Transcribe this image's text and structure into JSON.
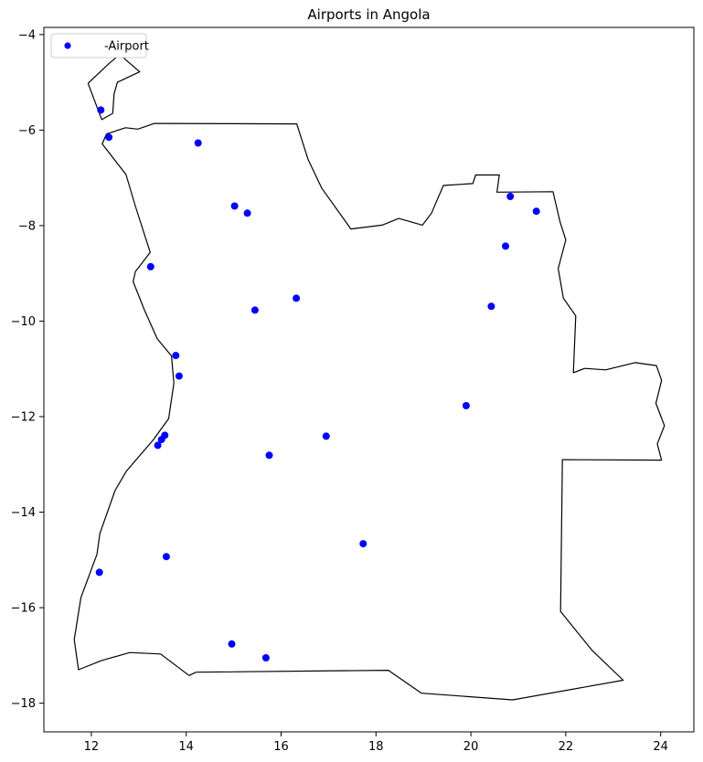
{
  "chart_data": {
    "type": "scatter",
    "title": "Airports in Angola",
    "xlabel": "",
    "ylabel": "",
    "xlim": [
      11.0,
      24.7
    ],
    "ylim": [
      -18.6,
      -3.85
    ],
    "xticks": [
      12,
      14,
      16,
      18,
      20,
      22,
      24
    ],
    "yticks": [
      -4,
      -6,
      -8,
      -10,
      -12,
      -14,
      -16,
      -18
    ],
    "grid": false,
    "legend": {
      "position": "top-left",
      "entries": [
        "-Airport"
      ]
    },
    "colors": {
      "points": "#0000ff",
      "boundary": "#000000"
    },
    "series": [
      {
        "name": "-Airport",
        "points": [
          [
            12.2,
            -5.58
          ],
          [
            12.37,
            -6.15
          ],
          [
            14.25,
            -6.27
          ],
          [
            15.02,
            -7.59
          ],
          [
            15.29,
            -7.74
          ],
          [
            13.25,
            -8.86
          ],
          [
            15.45,
            -9.77
          ],
          [
            16.32,
            -9.52
          ],
          [
            13.78,
            -10.72
          ],
          [
            13.85,
            -11.15
          ],
          [
            13.55,
            -12.39
          ],
          [
            13.48,
            -12.48
          ],
          [
            13.4,
            -12.6
          ],
          [
            15.75,
            -12.81
          ],
          [
            16.95,
            -12.41
          ],
          [
            13.58,
            -14.93
          ],
          [
            12.17,
            -15.26
          ],
          [
            17.73,
            -14.66
          ],
          [
            14.96,
            -16.76
          ],
          [
            15.68,
            -17.05
          ],
          [
            20.83,
            -7.39
          ],
          [
            21.38,
            -7.7
          ],
          [
            20.73,
            -8.43
          ],
          [
            20.43,
            -9.69
          ],
          [
            19.9,
            -11.77
          ]
        ]
      }
    ],
    "boundaries": [
      [
        [
          11.93,
          -5.02
        ],
        [
          12.38,
          -4.6
        ],
        [
          12.6,
          -4.42
        ],
        [
          13.02,
          -4.78
        ],
        [
          12.55,
          -5.0
        ],
        [
          12.48,
          -5.24
        ],
        [
          12.45,
          -5.65
        ],
        [
          12.22,
          -5.78
        ],
        [
          11.93,
          -5.02
        ]
      ],
      [
        [
          12.32,
          -6.08
        ],
        [
          12.72,
          -5.95
        ],
        [
          12.98,
          -5.98
        ],
        [
          13.33,
          -5.86
        ],
        [
          16.33,
          -5.87
        ],
        [
          16.57,
          -6.62
        ],
        [
          16.86,
          -7.22
        ],
        [
          17.47,
          -8.07
        ],
        [
          18.13,
          -7.99
        ],
        [
          18.48,
          -7.85
        ],
        [
          18.98,
          -7.99
        ],
        [
          19.17,
          -7.74
        ],
        [
          19.42,
          -7.16
        ],
        [
          20.04,
          -7.12
        ],
        [
          20.1,
          -6.94
        ],
        [
          20.6,
          -6.94
        ],
        [
          20.55,
          -7.3
        ],
        [
          21.73,
          -7.29
        ],
        [
          21.88,
          -7.92
        ],
        [
          22.0,
          -8.3
        ],
        [
          21.84,
          -8.9
        ],
        [
          21.95,
          -9.52
        ],
        [
          22.21,
          -9.89
        ],
        [
          22.16,
          -11.08
        ],
        [
          22.4,
          -10.99
        ],
        [
          22.84,
          -11.02
        ],
        [
          23.46,
          -10.87
        ],
        [
          23.91,
          -10.93
        ],
        [
          24.02,
          -11.24
        ],
        [
          23.9,
          -11.72
        ],
        [
          24.08,
          -12.19
        ],
        [
          23.93,
          -12.57
        ],
        [
          24.02,
          -12.91
        ],
        [
          21.93,
          -12.9
        ],
        [
          21.89,
          -16.08
        ],
        [
          22.56,
          -16.9
        ],
        [
          23.21,
          -17.52
        ],
        [
          20.88,
          -17.93
        ],
        [
          18.96,
          -17.79
        ],
        [
          18.26,
          -17.31
        ],
        [
          14.21,
          -17.35
        ],
        [
          14.06,
          -17.42
        ],
        [
          13.46,
          -16.97
        ],
        [
          12.81,
          -16.94
        ],
        [
          12.21,
          -17.11
        ],
        [
          11.73,
          -17.3
        ],
        [
          11.64,
          -16.67
        ],
        [
          11.78,
          -15.79
        ],
        [
          12.12,
          -14.88
        ],
        [
          12.18,
          -14.45
        ],
        [
          12.5,
          -13.55
        ],
        [
          12.74,
          -13.14
        ],
        [
          13.31,
          -12.48
        ],
        [
          13.63,
          -12.04
        ],
        [
          13.74,
          -11.3
        ],
        [
          13.69,
          -10.73
        ],
        [
          13.39,
          -10.37
        ],
        [
          13.12,
          -9.77
        ],
        [
          12.88,
          -9.17
        ],
        [
          12.93,
          -8.96
        ],
        [
          13.24,
          -8.56
        ],
        [
          12.93,
          -7.6
        ],
        [
          12.73,
          -6.93
        ],
        [
          12.23,
          -6.29
        ],
        [
          12.32,
          -6.08
        ]
      ]
    ]
  }
}
